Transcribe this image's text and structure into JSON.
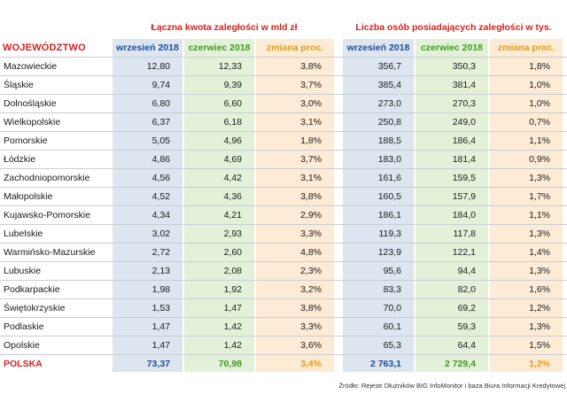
{
  "titles": {
    "debt": "Łączna kwota zaległości w mld zł",
    "people": "Liczba osób posiadających zaległości w tys."
  },
  "headers": {
    "region": "WOJEWÓDZTWO",
    "debt_sep2018": "wrzesień 2018",
    "debt_jun2018": "czerwiec 2018",
    "debt_change": "zmiana proc.",
    "people_sep2018": "wrzesień 2018",
    "people_jun2018": "czerwiec 2018",
    "people_change": "zmiana proc."
  },
  "rows": [
    {
      "region": "Mazowieckie",
      "d1": "12,80",
      "d2": "12,33",
      "d3": "3,8%",
      "p1": "356,7",
      "p2": "350,3",
      "p3": "1,8%"
    },
    {
      "region": "Śląskie",
      "d1": "9,74",
      "d2": "9,39",
      "d3": "3,7%",
      "p1": "385,4",
      "p2": "381,4",
      "p3": "1,0%"
    },
    {
      "region": "Dolnośląskie",
      "d1": "6,80",
      "d2": "6,60",
      "d3": "3,0%",
      "p1": "273,0",
      "p2": "270,3",
      "p3": "1,0%"
    },
    {
      "region": "Wielkopolskie",
      "d1": "6,37",
      "d2": "6,18",
      "d3": "3,1%",
      "p1": "250,8",
      "p2": "249,0",
      "p3": "0,7%"
    },
    {
      "region": "Pomorskie",
      "d1": "5,05",
      "d2": "4,96",
      "d3": "1,8%",
      "p1": "188,5",
      "p2": "186,4",
      "p3": "1,1%"
    },
    {
      "region": "Łódzkie",
      "d1": "4,86",
      "d2": "4,69",
      "d3": "3,7%",
      "p1": "183,0",
      "p2": "181,4",
      "p3": "0,9%"
    },
    {
      "region": "Zachodniopomorskie",
      "d1": "4,56",
      "d2": "4,42",
      "d3": "3,1%",
      "p1": "161,6",
      "p2": "159,5",
      "p3": "1,3%"
    },
    {
      "region": "Małopolskie",
      "d1": "4,52",
      "d2": "4,36",
      "d3": "3,8%",
      "p1": "160,5",
      "p2": "157,9",
      "p3": "1,7%"
    },
    {
      "region": "Kujawsko-Pomorskie",
      "d1": "4,34",
      "d2": "4,21",
      "d3": "2,9%",
      "p1": "186,1",
      "p2": "184,0",
      "p3": "1,1%"
    },
    {
      "region": "Lubelskie",
      "d1": "3,02",
      "d2": "2,93",
      "d3": "3,3%",
      "p1": "119,3",
      "p2": "117,8",
      "p3": "1,3%"
    },
    {
      "region": "Warmińsko-Mazurskie",
      "d1": "2,72",
      "d2": "2,60",
      "d3": "4,8%",
      "p1": "123,9",
      "p2": "122,1",
      "p3": "1,4%"
    },
    {
      "region": "Lubuskie",
      "d1": "2,13",
      "d2": "2,08",
      "d3": "2,3%",
      "p1": "95,6",
      "p2": "94,4",
      "p3": "1,3%"
    },
    {
      "region": "Podkarpackie",
      "d1": "1,98",
      "d2": "1,92",
      "d3": "3,2%",
      "p1": "83,3",
      "p2": "82,0",
      "p3": "1,6%"
    },
    {
      "region": "Świętokrzyskie",
      "d1": "1,53",
      "d2": "1,47",
      "d3": "3,8%",
      "p1": "70,0",
      "p2": "69,2",
      "p3": "1,2%"
    },
    {
      "region": "Podlaskie",
      "d1": "1,47",
      "d2": "1,42",
      "d3": "3,3%",
      "p1": "60,1",
      "p2": "59,3",
      "p3": "1,3%"
    },
    {
      "region": "Opolskie",
      "d1": "1,47",
      "d2": "1,42",
      "d3": "3,6%",
      "p1": "65,3",
      "p2": "64,4",
      "p3": "1,5%"
    }
  ],
  "total": {
    "region": "POLSKA",
    "d1": "73,37",
    "d2": "70,98",
    "d3": "3,4%",
    "p1": "2 763,1",
    "p2": "2 729,4",
    "p3": "1,2%"
  },
  "source": "Źródło: Rejestr Dłużników BIG InfoMonitor i baza Biura Informacji Kredytowej",
  "colors": {
    "red": "#d81e1e",
    "blue": "#1d4f96",
    "green": "#3f9a1f",
    "orange": "#e89a17"
  }
}
